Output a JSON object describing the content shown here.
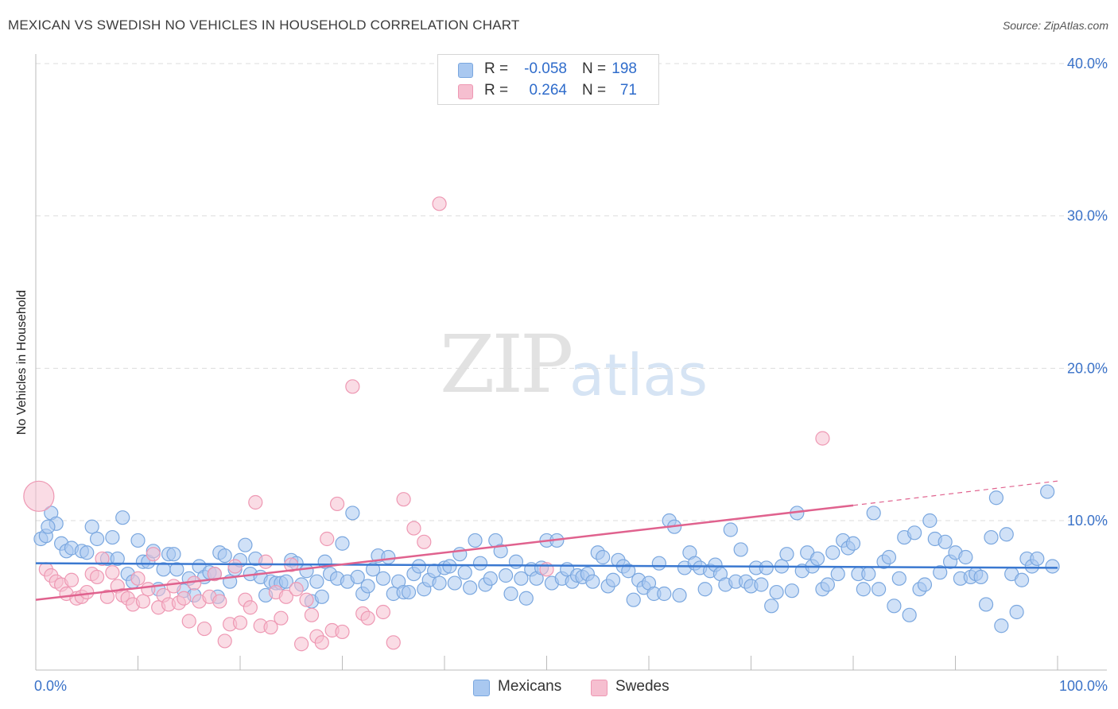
{
  "title": "MEXICAN VS SWEDISH NO VEHICLES IN HOUSEHOLD CORRELATION CHART",
  "source": "Source: ZipAtlas.com",
  "watermark": {
    "zip": "ZIP",
    "atlas": "atlas"
  },
  "colors": {
    "mexicans_fill": "#a9c8f0",
    "mexicans_stroke": "#7aa7df",
    "mexicans_line": "#3a78d0",
    "swedes_fill": "#f6bfd0",
    "swedes_stroke": "#ee98b3",
    "swedes_line": "#e0628e",
    "axis_label": "#3a72c8",
    "grid": "#dddddd"
  },
  "legend": {
    "rows": [
      {
        "r_label": "R =",
        "r_value": "-0.058",
        "n_label": "N =",
        "n_value": "198"
      },
      {
        "r_label": "R =",
        "r_value": "0.264",
        "n_label": "N =",
        "n_value": "71"
      }
    ]
  },
  "bottom_legend": {
    "mexicans": "Mexicans",
    "swedes": "Swedes"
  },
  "chart_data": {
    "type": "scatter",
    "title": "MEXICAN VS SWEDISH NO VEHICLES IN HOUSEHOLD CORRELATION CHART",
    "xlabel": "",
    "ylabel": "No Vehicles in Household",
    "xlim": [
      0,
      100
    ],
    "ylim": [
      0,
      42
    ],
    "x_tick_labels": [
      "0.0%",
      "100.0%"
    ],
    "y_ticks": [
      10,
      20,
      30,
      40
    ],
    "y_tick_labels": [
      "10.0%",
      "20.0%",
      "30.0%",
      "40.0%"
    ],
    "grid": true,
    "series": [
      {
        "name": "Mexicans",
        "r": -0.058,
        "n": 198,
        "trend": {
          "x": [
            0,
            100
          ],
          "y": [
            7.2,
            6.9
          ]
        },
        "points": [
          [
            0.5,
            8.8
          ],
          [
            1,
            9.0
          ],
          [
            1.5,
            10.5
          ],
          [
            2,
            9.8
          ],
          [
            2.5,
            8.5
          ],
          [
            3,
            8.0
          ],
          [
            3.5,
            8.2
          ],
          [
            4.5,
            8.0
          ],
          [
            5,
            7.9
          ],
          [
            5.5,
            9.6
          ],
          [
            6,
            8.8
          ],
          [
            7,
            7.5
          ],
          [
            7.5,
            8.9
          ],
          [
            8,
            7.5
          ],
          [
            8.5,
            10.2
          ],
          [
            9,
            6.5
          ],
          [
            9.5,
            6.0
          ],
          [
            10,
            8.7
          ],
          [
            10.5,
            7.3
          ],
          [
            11,
            7.3
          ],
          [
            11.5,
            8.0
          ],
          [
            12,
            5.5
          ],
          [
            12.5,
            6.8
          ],
          [
            13,
            7.8
          ],
          [
            13.5,
            7.8
          ],
          [
            13.8,
            6.8
          ],
          [
            14.5,
            5.4
          ],
          [
            15,
            6.2
          ],
          [
            15.5,
            5.1
          ],
          [
            16,
            7.0
          ],
          [
            16.5,
            6.3
          ],
          [
            17,
            6.6
          ],
          [
            17.5,
            6.5
          ],
          [
            17.8,
            5.0
          ],
          [
            18,
            7.9
          ],
          [
            18.5,
            7.7
          ],
          [
            19,
            6.0
          ],
          [
            19.5,
            6.8
          ],
          [
            20,
            7.4
          ],
          [
            20.5,
            8.4
          ],
          [
            21,
            6.5
          ],
          [
            21.5,
            7.5
          ],
          [
            22,
            6.3
          ],
          [
            22.5,
            5.1
          ],
          [
            23,
            6.0
          ],
          [
            23.5,
            5.9
          ],
          [
            24,
            5.9
          ],
          [
            24.5,
            6.0
          ],
          [
            25,
            7.4
          ],
          [
            25.5,
            7.2
          ],
          [
            26,
            5.8
          ],
          [
            26.5,
            6.7
          ],
          [
            27,
            4.7
          ],
          [
            27.5,
            6.0
          ],
          [
            28,
            5.0
          ],
          [
            28.3,
            7.3
          ],
          [
            28.8,
            6.5
          ],
          [
            29.5,
            6.2
          ],
          [
            30,
            8.5
          ],
          [
            30.5,
            6.0
          ],
          [
            31,
            10.5
          ],
          [
            31.5,
            6.3
          ],
          [
            32,
            5.2
          ],
          [
            32.5,
            5.7
          ],
          [
            33,
            6.8
          ],
          [
            33.5,
            7.7
          ],
          [
            34,
            6.2
          ],
          [
            34.5,
            7.6
          ],
          [
            35,
            5.2
          ],
          [
            35.5,
            6.0
          ],
          [
            36,
            5.3
          ],
          [
            36.5,
            5.3
          ],
          [
            37,
            6.5
          ],
          [
            37.5,
            7.0
          ],
          [
            38,
            5.5
          ],
          [
            38.5,
            6.1
          ],
          [
            39,
            6.7
          ],
          [
            39.5,
            5.9
          ],
          [
            40,
            6.9
          ],
          [
            40.5,
            7.0
          ],
          [
            41,
            5.9
          ],
          [
            41.5,
            7.8
          ],
          [
            42,
            6.6
          ],
          [
            42.5,
            5.6
          ],
          [
            43,
            8.7
          ],
          [
            43.5,
            7.2
          ],
          [
            44,
            5.8
          ],
          [
            44.5,
            6.2
          ],
          [
            45,
            8.7
          ],
          [
            45.5,
            8.0
          ],
          [
            46,
            6.4
          ],
          [
            46.5,
            5.2
          ],
          [
            47,
            7.3
          ],
          [
            47.5,
            6.2
          ],
          [
            48,
            4.9
          ],
          [
            48.5,
            6.8
          ],
          [
            49,
            6.2
          ],
          [
            49.5,
            6.9
          ],
          [
            50,
            8.7
          ],
          [
            50.5,
            5.9
          ],
          [
            51,
            8.7
          ],
          [
            51.5,
            6.2
          ],
          [
            52,
            6.8
          ],
          [
            52.5,
            6.0
          ],
          [
            53,
            6.4
          ],
          [
            53.5,
            6.3
          ],
          [
            54,
            6.5
          ],
          [
            54.5,
            6.0
          ],
          [
            55,
            7.9
          ],
          [
            55.5,
            7.6
          ],
          [
            56,
            5.7
          ],
          [
            56.5,
            6.1
          ],
          [
            57,
            7.4
          ],
          [
            57.5,
            7.0
          ],
          [
            58,
            6.7
          ],
          [
            58.5,
            4.8
          ],
          [
            59,
            6.1
          ],
          [
            59.5,
            5.6
          ],
          [
            60,
            5.9
          ],
          [
            60.5,
            5.2
          ],
          [
            61,
            7.2
          ],
          [
            61.5,
            5.2
          ],
          [
            62,
            10.0
          ],
          [
            62.5,
            9.6
          ],
          [
            63,
            5.1
          ],
          [
            63.5,
            6.9
          ],
          [
            64,
            7.9
          ],
          [
            64.5,
            7.2
          ],
          [
            65,
            6.9
          ],
          [
            65.5,
            5.5
          ],
          [
            66,
            6.7
          ],
          [
            66.5,
            7.1
          ],
          [
            67,
            6.5
          ],
          [
            67.5,
            5.8
          ],
          [
            68,
            9.4
          ],
          [
            68.5,
            6.0
          ],
          [
            69,
            8.1
          ],
          [
            69.5,
            6.0
          ],
          [
            70,
            5.7
          ],
          [
            70.5,
            6.9
          ],
          [
            71,
            5.8
          ],
          [
            71.5,
            6.9
          ],
          [
            72,
            4.4
          ],
          [
            72.5,
            5.3
          ],
          [
            73,
            7.0
          ],
          [
            73.5,
            7.8
          ],
          [
            74,
            5.4
          ],
          [
            74.5,
            10.5
          ],
          [
            75,
            6.7
          ],
          [
            75.5,
            7.9
          ],
          [
            76,
            7.0
          ],
          [
            76.5,
            7.5
          ],
          [
            77,
            5.5
          ],
          [
            77.5,
            5.8
          ],
          [
            78,
            7.9
          ],
          [
            78.5,
            6.5
          ],
          [
            79,
            8.7
          ],
          [
            79.5,
            8.2
          ],
          [
            80,
            8.5
          ],
          [
            80.5,
            6.5
          ],
          [
            81,
            5.5
          ],
          [
            81.5,
            6.5
          ],
          [
            82,
            10.5
          ],
          [
            82.5,
            5.5
          ],
          [
            83,
            7.3
          ],
          [
            83.5,
            7.6
          ],
          [
            84,
            4.4
          ],
          [
            84.5,
            6.2
          ],
          [
            85,
            8.9
          ],
          [
            85.5,
            3.8
          ],
          [
            86,
            9.2
          ],
          [
            86.5,
            5.5
          ],
          [
            87,
            5.8
          ],
          [
            87.5,
            10.0
          ],
          [
            88,
            8.8
          ],
          [
            88.5,
            6.6
          ],
          [
            89,
            8.6
          ],
          [
            89.5,
            7.3
          ],
          [
            90,
            7.9
          ],
          [
            90.5,
            6.2
          ],
          [
            91,
            7.6
          ],
          [
            91.5,
            6.3
          ],
          [
            92,
            6.5
          ],
          [
            92.5,
            6.3
          ],
          [
            93,
            4.5
          ],
          [
            93.5,
            8.9
          ],
          [
            94,
            11.5
          ],
          [
            94.5,
            3.1
          ],
          [
            95,
            9.1
          ],
          [
            95.5,
            6.5
          ],
          [
            96,
            4.0
          ],
          [
            96.5,
            6.1
          ],
          [
            97,
            7.5
          ],
          [
            97.5,
            7.0
          ],
          [
            98,
            7.5
          ],
          [
            99,
            11.9
          ],
          [
            99.5,
            7.0
          ],
          [
            1.2,
            9.6
          ]
        ]
      },
      {
        "name": "Swedes",
        "r": 0.264,
        "n": 71,
        "trend": {
          "x": [
            0,
            80
          ],
          "y": [
            4.8,
            11.0
          ]
        },
        "trend_extension": {
          "x": [
            80,
            100
          ],
          "y": [
            11.0,
            12.6
          ]
        },
        "points": [
          [
            0.3,
            11.6
          ],
          [
            1,
            6.8
          ],
          [
            1.5,
            6.4
          ],
          [
            2,
            6.0
          ],
          [
            2.5,
            5.8
          ],
          [
            3,
            5.2
          ],
          [
            3.5,
            6.1
          ],
          [
            4,
            4.9
          ],
          [
            4.5,
            5.0
          ],
          [
            5,
            5.3
          ],
          [
            5.5,
            6.5
          ],
          [
            6,
            6.3
          ],
          [
            6.5,
            7.5
          ],
          [
            7,
            5.0
          ],
          [
            7.5,
            6.6
          ],
          [
            8,
            5.7
          ],
          [
            8.5,
            5.1
          ],
          [
            9,
            4.9
          ],
          [
            9.5,
            4.5
          ],
          [
            10,
            6.2
          ],
          [
            10.5,
            4.7
          ],
          [
            11,
            5.5
          ],
          [
            11.5,
            7.8
          ],
          [
            12,
            4.3
          ],
          [
            12.5,
            5.1
          ],
          [
            13,
            4.5
          ],
          [
            13.5,
            5.7
          ],
          [
            14,
            4.6
          ],
          [
            14.5,
            4.9
          ],
          [
            15,
            3.4
          ],
          [
            15.5,
            5.9
          ],
          [
            16,
            4.7
          ],
          [
            16.5,
            2.9
          ],
          [
            17,
            5.0
          ],
          [
            17.5,
            6.5
          ],
          [
            18,
            4.7
          ],
          [
            18.5,
            2.1
          ],
          [
            19,
            3.2
          ],
          [
            19.5,
            7.0
          ],
          [
            20,
            3.3
          ],
          [
            20.5,
            4.8
          ],
          [
            21,
            4.3
          ],
          [
            21.5,
            11.2
          ],
          [
            22,
            3.1
          ],
          [
            22.5,
            7.3
          ],
          [
            23,
            3.0
          ],
          [
            23.5,
            5.3
          ],
          [
            24,
            3.6
          ],
          [
            24.5,
            5.0
          ],
          [
            25,
            7.1
          ],
          [
            25.5,
            5.5
          ],
          [
            26,
            1.9
          ],
          [
            26.5,
            4.8
          ],
          [
            27,
            3.8
          ],
          [
            27.5,
            2.4
          ],
          [
            28,
            2.0
          ],
          [
            28.5,
            8.8
          ],
          [
            29,
            2.8
          ],
          [
            29.5,
            11.1
          ],
          [
            30,
            2.7
          ],
          [
            31,
            18.8
          ],
          [
            32,
            3.9
          ],
          [
            32.5,
            3.6
          ],
          [
            34,
            4.0
          ],
          [
            35,
            2.0
          ],
          [
            36,
            11.4
          ],
          [
            37,
            9.5
          ],
          [
            38,
            8.6
          ],
          [
            39.5,
            30.8
          ],
          [
            50,
            6.8
          ],
          [
            77,
            15.4
          ]
        ]
      }
    ]
  }
}
